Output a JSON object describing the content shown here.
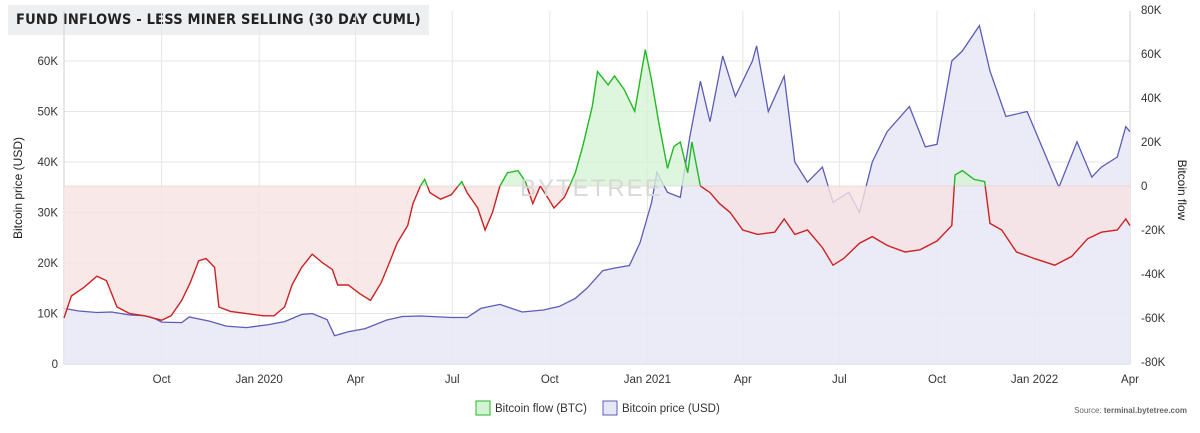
{
  "title": "FUND INFLOWS - LESS MINER SELLING (30 DAY CUML)",
  "watermark": "BYTETREE",
  "source_prefix": "Source: ",
  "source_site": "terminal.bytetree.com",
  "colors": {
    "flow_positive": "#22b922",
    "flow_negative": "#cc2222",
    "flow_positive_fill": "#d6f2d6",
    "flow_negative_fill": "#f6e2e2",
    "price_line": "#5c5cb8",
    "price_fill": "#e7e8f6"
  },
  "chart_data": {
    "type": "line",
    "title": "FUND INFLOWS - LESS MINER SELLING (30 DAY CUML)",
    "x_ticks": [
      "Oct",
      "Jan 2020",
      "Apr",
      "Jul",
      "Oct",
      "Jan 2021",
      "Apr",
      "Jul",
      "Oct",
      "Jan 2022",
      "Apr"
    ],
    "x_range": [
      "2019-07-01",
      "2022-04-01"
    ],
    "y_left": {
      "label": "Bitcoin price (USD)",
      "ticks": [
        "0",
        "10K",
        "20K",
        "30K",
        "40K",
        "50K",
        "60K"
      ],
      "range": [
        0,
        70000
      ]
    },
    "y_right": {
      "label": "Bitcoin flow",
      "ticks": [
        "-80K",
        "-60K",
        "-40K",
        "-20K",
        "0",
        "20K",
        "40K",
        "60K",
        "80K"
      ],
      "range": [
        -80000,
        80000
      ]
    },
    "legend": [
      "Bitcoin flow (BTC)",
      "Bitcoin price (USD)"
    ],
    "legend_position": "bottom",
    "series": [
      {
        "name": "Bitcoin flow (BTC)",
        "axis": "right",
        "points": [
          [
            "2019-07-01",
            -60000
          ],
          [
            "2019-07-08",
            -50000
          ],
          [
            "2019-07-20",
            -46000
          ],
          [
            "2019-08-01",
            -41000
          ],
          [
            "2019-08-10",
            -43000
          ],
          [
            "2019-08-20",
            -55000
          ],
          [
            "2019-09-01",
            -58000
          ],
          [
            "2019-09-15",
            -59000
          ],
          [
            "2019-10-01",
            -61000
          ],
          [
            "2019-10-10",
            -59000
          ],
          [
            "2019-10-20",
            -52000
          ],
          [
            "2019-10-28",
            -44000
          ],
          [
            "2019-11-05",
            -34000
          ],
          [
            "2019-11-12",
            -33000
          ],
          [
            "2019-11-20",
            -37000
          ],
          [
            "2019-11-24",
            -55000
          ],
          [
            "2019-12-05",
            -57000
          ],
          [
            "2019-12-20",
            -58000
          ],
          [
            "2020-01-05",
            -59000
          ],
          [
            "2020-01-15",
            -59000
          ],
          [
            "2020-01-25",
            -55000
          ],
          [
            "2020-02-01",
            -45000
          ],
          [
            "2020-02-10",
            -37000
          ],
          [
            "2020-02-20",
            -31000
          ],
          [
            "2020-03-01",
            -35000
          ],
          [
            "2020-03-10",
            -38000
          ],
          [
            "2020-03-15",
            -45000
          ],
          [
            "2020-03-25",
            -45000
          ],
          [
            "2020-04-05",
            -49000
          ],
          [
            "2020-04-15",
            -52000
          ],
          [
            "2020-04-25",
            -44000
          ],
          [
            "2020-05-01",
            -37000
          ],
          [
            "2020-05-10",
            -26000
          ],
          [
            "2020-05-20",
            -18000
          ],
          [
            "2020-05-25",
            -8000
          ],
          [
            "2020-06-01",
            0
          ],
          [
            "2020-06-05",
            3000
          ],
          [
            "2020-06-10",
            -3000
          ],
          [
            "2020-06-20",
            -6000
          ],
          [
            "2020-06-30",
            -4000
          ],
          [
            "2020-07-05",
            -1000
          ],
          [
            "2020-07-10",
            2000
          ],
          [
            "2020-07-15",
            -3000
          ],
          [
            "2020-07-25",
            -10000
          ],
          [
            "2020-08-01",
            -20000
          ],
          [
            "2020-08-08",
            -12000
          ],
          [
            "2020-08-15",
            0
          ],
          [
            "2020-08-22",
            6000
          ],
          [
            "2020-09-01",
            7000
          ],
          [
            "2020-09-08",
            2000
          ],
          [
            "2020-09-15",
            -8000
          ],
          [
            "2020-09-22",
            0
          ],
          [
            "2020-09-30",
            -6000
          ],
          [
            "2020-10-05",
            -10000
          ],
          [
            "2020-10-15",
            -5000
          ],
          [
            "2020-10-25",
            6000
          ],
          [
            "2020-11-01",
            18000
          ],
          [
            "2020-11-10",
            36000
          ],
          [
            "2020-11-15",
            52000
          ],
          [
            "2020-11-25",
            46000
          ],
          [
            "2020-12-01",
            50000
          ],
          [
            "2020-12-10",
            44000
          ],
          [
            "2020-12-20",
            34000
          ],
          [
            "2020-12-30",
            62000
          ],
          [
            "2021-01-05",
            48000
          ],
          [
            "2021-01-12",
            28000
          ],
          [
            "2021-01-20",
            8000
          ],
          [
            "2021-01-26",
            18000
          ],
          [
            "2021-02-01",
            20000
          ],
          [
            "2021-02-08",
            6000
          ],
          [
            "2021-02-12",
            20000
          ],
          [
            "2021-02-20",
            0
          ],
          [
            "2021-03-01",
            -3000
          ],
          [
            "2021-03-10",
            -8000
          ],
          [
            "2021-03-20",
            -12000
          ],
          [
            "2021-04-01",
            -20000
          ],
          [
            "2021-04-15",
            -22000
          ],
          [
            "2021-05-01",
            -21000
          ],
          [
            "2021-05-10",
            -15000
          ],
          [
            "2021-05-20",
            -22000
          ],
          [
            "2021-06-01",
            -20000
          ],
          [
            "2021-06-15",
            -28000
          ],
          [
            "2021-06-25",
            -36000
          ],
          [
            "2021-07-05",
            -33000
          ],
          [
            "2021-07-20",
            -26000
          ],
          [
            "2021-08-01",
            -23000
          ],
          [
            "2021-08-15",
            -27000
          ],
          [
            "2021-09-01",
            -30000
          ],
          [
            "2021-09-15",
            -29000
          ],
          [
            "2021-10-01",
            -25000
          ],
          [
            "2021-10-15",
            -18000
          ],
          [
            "2021-10-18",
            5000
          ],
          [
            "2021-10-25",
            7000
          ],
          [
            "2021-11-05",
            3000
          ],
          [
            "2021-11-15",
            2000
          ],
          [
            "2021-11-20",
            -17000
          ],
          [
            "2021-12-01",
            -20000
          ],
          [
            "2021-12-15",
            -30000
          ],
          [
            "2022-01-01",
            -33000
          ],
          [
            "2022-01-20",
            -36000
          ],
          [
            "2022-02-05",
            -32000
          ],
          [
            "2022-02-20",
            -24000
          ],
          [
            "2022-03-05",
            -21000
          ],
          [
            "2022-03-20",
            -20000
          ],
          [
            "2022-03-28",
            -15000
          ],
          [
            "2022-04-01",
            -18000
          ]
        ]
      },
      {
        "name": "Bitcoin price (USD)",
        "axis": "left",
        "points": [
          [
            "2019-07-01",
            11000
          ],
          [
            "2019-07-15",
            10500
          ],
          [
            "2019-08-01",
            10200
          ],
          [
            "2019-08-15",
            10300
          ],
          [
            "2019-09-01",
            9700
          ],
          [
            "2019-09-20",
            9500
          ],
          [
            "2019-10-01",
            8300
          ],
          [
            "2019-10-20",
            8200
          ],
          [
            "2019-10-27",
            9300
          ],
          [
            "2019-11-15",
            8500
          ],
          [
            "2019-12-01",
            7500
          ],
          [
            "2019-12-20",
            7200
          ],
          [
            "2020-01-10",
            7800
          ],
          [
            "2020-01-25",
            8400
          ],
          [
            "2020-02-10",
            9800
          ],
          [
            "2020-02-20",
            10000
          ],
          [
            "2020-03-05",
            8800
          ],
          [
            "2020-03-12",
            5600
          ],
          [
            "2020-03-25",
            6400
          ],
          [
            "2020-04-10",
            7000
          ],
          [
            "2020-04-30",
            8700
          ],
          [
            "2020-05-15",
            9400
          ],
          [
            "2020-06-01",
            9500
          ],
          [
            "2020-06-30",
            9200
          ],
          [
            "2020-07-15",
            9200
          ],
          [
            "2020-07-28",
            11000
          ],
          [
            "2020-08-15",
            11800
          ],
          [
            "2020-09-05",
            10300
          ],
          [
            "2020-09-25",
            10700
          ],
          [
            "2020-10-10",
            11400
          ],
          [
            "2020-10-25",
            13000
          ],
          [
            "2020-11-05",
            15000
          ],
          [
            "2020-11-20",
            18500
          ],
          [
            "2020-12-01",
            19000
          ],
          [
            "2020-12-15",
            19500
          ],
          [
            "2020-12-25",
            24000
          ],
          [
            "2021-01-05",
            32000
          ],
          [
            "2021-01-10",
            38000
          ],
          [
            "2021-01-20",
            34000
          ],
          [
            "2021-02-01",
            33000
          ],
          [
            "2021-02-10",
            45000
          ],
          [
            "2021-02-20",
            56000
          ],
          [
            "2021-03-01",
            48000
          ],
          [
            "2021-03-13",
            61000
          ],
          [
            "2021-03-25",
            53000
          ],
          [
            "2021-04-10",
            60000
          ],
          [
            "2021-04-14",
            63000
          ],
          [
            "2021-04-25",
            50000
          ],
          [
            "2021-05-10",
            57000
          ],
          [
            "2021-05-20",
            40000
          ],
          [
            "2021-06-01",
            36000
          ],
          [
            "2021-06-15",
            39000
          ],
          [
            "2021-06-25",
            32000
          ],
          [
            "2021-07-10",
            34000
          ],
          [
            "2021-07-20",
            30000
          ],
          [
            "2021-08-01",
            40000
          ],
          [
            "2021-08-15",
            46000
          ],
          [
            "2021-09-05",
            51000
          ],
          [
            "2021-09-20",
            43000
          ],
          [
            "2021-10-01",
            43500
          ],
          [
            "2021-10-15",
            60000
          ],
          [
            "2021-10-25",
            62000
          ],
          [
            "2021-11-10",
            67000
          ],
          [
            "2021-11-20",
            58000
          ],
          [
            "2021-12-05",
            49000
          ],
          [
            "2021-12-25",
            50000
          ],
          [
            "2022-01-10",
            42000
          ],
          [
            "2022-01-24",
            35000
          ],
          [
            "2022-02-10",
            44000
          ],
          [
            "2022-02-24",
            37000
          ],
          [
            "2022-03-05",
            39000
          ],
          [
            "2022-03-20",
            41000
          ],
          [
            "2022-03-28",
            47000
          ],
          [
            "2022-04-01",
            46000
          ]
        ]
      }
    ]
  }
}
